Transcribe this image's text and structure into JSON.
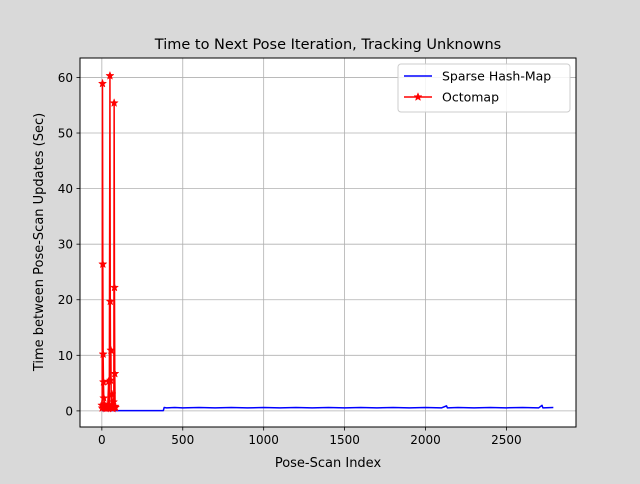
{
  "chart_data": {
    "type": "line",
    "title": "Time to Next Pose Iteration, Tracking Unknowns",
    "xlabel": "Pose-Scan Index",
    "ylabel": "Time between Pose-Scan Updates (Sec)",
    "xlim": [
      -135,
      2930
    ],
    "ylim": [
      -2.9,
      63.5
    ],
    "xticks": [
      0,
      500,
      1000,
      1500,
      2000,
      2500
    ],
    "yticks": [
      0,
      10,
      20,
      30,
      40,
      50,
      60
    ],
    "grid": true,
    "legend_position": "top-right",
    "series": [
      {
        "name": "Sparse Hash-Map",
        "color": "#0000ff",
        "marker": "none",
        "x": [
          0,
          100,
          200,
          300,
          380,
          385,
          400,
          450,
          500,
          600,
          700,
          800,
          900,
          1000,
          1100,
          1200,
          1300,
          1400,
          1500,
          1600,
          1700,
          1800,
          1900,
          2000,
          2100,
          2130,
          2135,
          2200,
          2300,
          2400,
          2500,
          2600,
          2700,
          2720,
          2725,
          2790
        ],
        "y": [
          0.05,
          0.05,
          0.05,
          0.05,
          0.05,
          0.6,
          0.55,
          0.6,
          0.55,
          0.6,
          0.55,
          0.6,
          0.55,
          0.6,
          0.55,
          0.6,
          0.55,
          0.6,
          0.55,
          0.6,
          0.55,
          0.6,
          0.55,
          0.6,
          0.55,
          0.9,
          0.55,
          0.6,
          0.55,
          0.6,
          0.55,
          0.6,
          0.55,
          1.0,
          0.55,
          0.6
        ]
      },
      {
        "name": "Octomap",
        "color": "#ff0000",
        "marker": "star",
        "x": [
          0,
          2,
          4,
          6,
          8,
          10,
          12,
          14,
          16,
          20,
          26,
          30,
          36,
          42,
          46,
          50,
          52,
          54,
          56,
          58,
          60,
          62,
          64,
          66,
          68,
          70,
          72,
          74,
          76,
          78,
          80,
          82,
          84
        ],
        "y": [
          1.0,
          0.5,
          58.9,
          26.4,
          10.2,
          5.2,
          2.3,
          1.2,
          0.5,
          0.8,
          0.4,
          0.7,
          0.5,
          5.3,
          0.6,
          60.3,
          19.7,
          5.5,
          10.9,
          0.6,
          0.5,
          3.0,
          1.1,
          0.8,
          0.4,
          0.6,
          1.6,
          0.7,
          55.4,
          22.2,
          6.7,
          0.8,
          0.6
        ]
      }
    ]
  }
}
